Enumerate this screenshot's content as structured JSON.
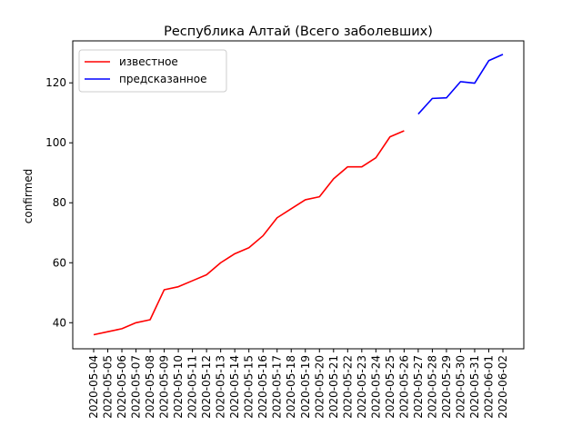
{
  "chart_data": {
    "type": "line",
    "title": "Республика Алтай (Всего заболевших)",
    "xlabel": "",
    "ylabel": "confirmed",
    "categories": [
      "2020-05-04",
      "2020-05-05",
      "2020-05-06",
      "2020-05-07",
      "2020-05-08",
      "2020-05-09",
      "2020-05-10",
      "2020-05-11",
      "2020-05-12",
      "2020-05-13",
      "2020-05-14",
      "2020-05-15",
      "2020-05-16",
      "2020-05-17",
      "2020-05-18",
      "2020-05-19",
      "2020-05-20",
      "2020-05-21",
      "2020-05-22",
      "2020-05-23",
      "2020-05-24",
      "2020-05-25",
      "2020-05-26",
      "2020-05-27",
      "2020-05-28",
      "2020-05-29",
      "2020-05-30",
      "2020-05-31",
      "2020-06-01",
      "2020-06-02"
    ],
    "ylim": [
      31.3,
      134.0
    ],
    "yticks": [
      40,
      60,
      80,
      100,
      120
    ],
    "grid": false,
    "legend_position": "upper-left",
    "series": [
      {
        "name": "известное",
        "color": "#ff0000",
        "x": [
          "2020-05-04",
          "2020-05-05",
          "2020-05-06",
          "2020-05-07",
          "2020-05-08",
          "2020-05-09",
          "2020-05-10",
          "2020-05-11",
          "2020-05-12",
          "2020-05-13",
          "2020-05-14",
          "2020-05-15",
          "2020-05-16",
          "2020-05-17",
          "2020-05-18",
          "2020-05-19",
          "2020-05-20",
          "2020-05-21",
          "2020-05-22",
          "2020-05-23",
          "2020-05-24",
          "2020-05-25",
          "2020-05-26"
        ],
        "values": [
          36,
          37,
          38,
          40,
          41,
          51,
          52,
          54,
          56,
          60,
          63,
          65,
          69,
          75,
          78,
          81,
          82,
          88,
          92,
          92,
          95,
          102,
          104
        ]
      },
      {
        "name": "предсказанное",
        "color": "#0000ff",
        "x": [
          "2020-05-27",
          "2020-05-28",
          "2020-05-29",
          "2020-05-30",
          "2020-05-31",
          "2020-06-01",
          "2020-06-02"
        ],
        "values": [
          109.6,
          114.8,
          115.0,
          120.4,
          119.9,
          127.4,
          129.5
        ]
      }
    ]
  }
}
